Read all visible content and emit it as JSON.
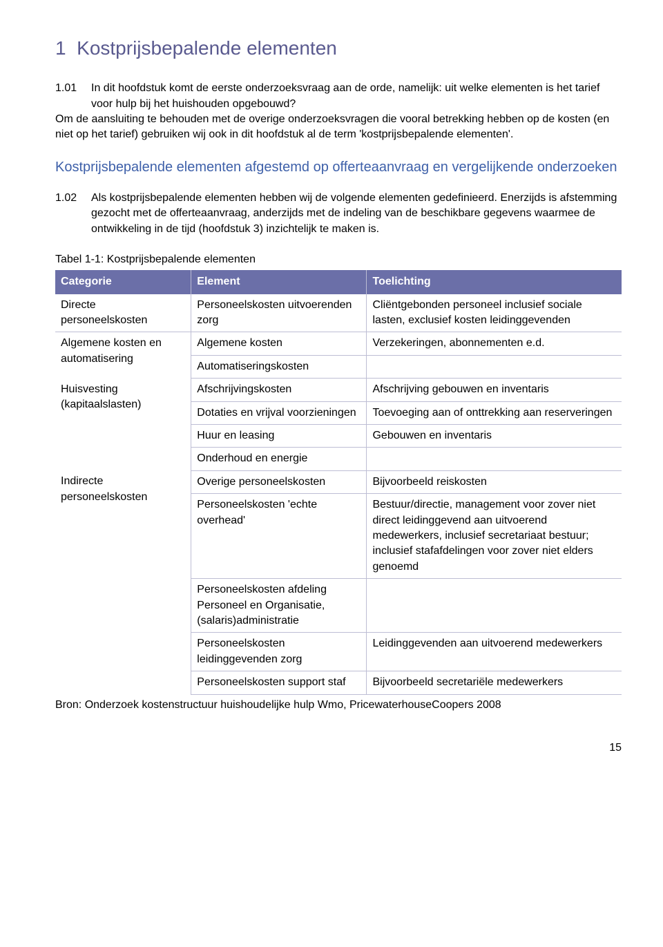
{
  "chapter": {
    "number": "1",
    "title": "Kostprijsbepalende elementen"
  },
  "para1": {
    "num": "1.01",
    "text": "In dit hoofdstuk komt de eerste onderzoeksvraag aan de orde, namelijk: uit welke elementen is het tarief voor hulp bij het huishouden opgebouwd?"
  },
  "para1_cont": "Om de aansluiting te behouden met de overige onderzoeksvragen die vooral betrekking hebben op de kosten (en niet op het tarief) gebruiken wij ook in dit hoofdstuk al de term 'kostprijsbepalende elementen'.",
  "section": "Kostprijsbepalende elementen afgestemd op offerteaanvraag en vergelijkende onderzoeken",
  "para2": {
    "num": "1.02",
    "text": "Als kostprijsbepalende elementen hebben wij de volgende elementen gedefinieerd. Enerzijds is afstemming gezocht met de offerteaanvraag, anderzijds met de indeling van de beschikbare gegevens waarmee de ontwikkeling in de tijd (hoofdstuk 3) inzichtelijk te maken is."
  },
  "table_caption": "Tabel 1-1: Kostprijsbepalende elementen",
  "table": {
    "header": {
      "c1": "Categorie",
      "c2": "Element",
      "c3": "Toelichting"
    },
    "cells": {
      "r0_cat": "Directe personeelskosten",
      "r0_elem": "Personeelskosten uitvoerenden zorg",
      "r0_toel": "Cliëntgebonden personeel inclusief sociale lasten, exclusief kosten leidinggevenden",
      "r1_cat": "Algemene kosten en automatisering",
      "r1_elem": "Algemene kosten",
      "r1_toel": "Verzekeringen, abonnementen e.d.",
      "r2_elem": "Automatiseringskosten",
      "r3_cat": "Huisvesting (kapitaalslasten)",
      "r3_elem": "Afschrijvingskosten",
      "r3_toel": "Afschrijving gebouwen en inventaris",
      "r4_elem": "Dotaties en vrijval voorzieningen",
      "r4_toel": "Toevoeging aan of onttrekking aan reserveringen",
      "r5_elem": "Huur en leasing",
      "r5_toel": "Gebouwen en inventaris",
      "r6_elem": "Onderhoud en energie",
      "r7_cat": "Indirecte personeelskosten",
      "r7_elem": "Overige personeelskosten",
      "r7_toel": "Bijvoorbeeld reiskosten",
      "r8_elem": "Personeelskosten 'echte overhead'",
      "r8_toel": "Bestuur/directie, management voor zover niet direct leidinggevend aan uitvoerend medewerkers, inclusief secretariaat bestuur; inclusief stafafdelingen voor zover niet elders genoemd",
      "r9_elem": "Personeelskosten afdeling Personeel en Organisatie, (salaris)administratie",
      "r10_elem": "Personeelskosten leidinggevenden zorg",
      "r10_toel": "Leidinggevenden aan uitvoerend medewerkers",
      "r11_elem": "Personeelskosten support staf",
      "r11_toel": "Bijvoorbeeld secretariële medewerkers"
    }
  },
  "source": "Bron: Onderzoek kostenstructuur huishoudelijke hulp Wmo, PricewaterhouseCoopers 2008",
  "page_number": "15",
  "colors": {
    "chapter_title": "#5a5a8f",
    "section_title": "#3e60a9",
    "table_header_bg": "#6b6fa8",
    "table_header_text": "#ffffff",
    "table_border": "#bdbdd4"
  }
}
